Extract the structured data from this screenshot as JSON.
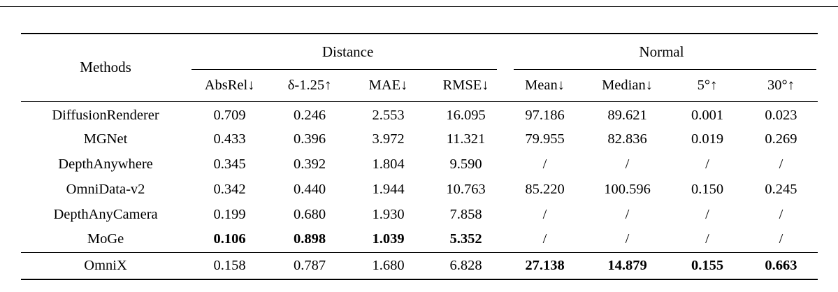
{
  "table": {
    "methods_header": "Methods",
    "col_groups": [
      {
        "label": "Distance",
        "span": 4
      },
      {
        "label": "Normal",
        "span": 4
      }
    ],
    "sub_headers": [
      "AbsRel↓",
      "δ-1.25↑",
      "MAE↓",
      "RMSE↓",
      "Mean↓",
      "Median↓",
      "5°↑",
      "30°↑"
    ],
    "rows": [
      {
        "method": "DiffusionRenderer",
        "values": [
          "0.709",
          "0.246",
          "2.553",
          "16.095",
          "97.186",
          "89.621",
          "0.001",
          "0.023"
        ],
        "bold": []
      },
      {
        "method": "MGNet",
        "values": [
          "0.433",
          "0.396",
          "3.972",
          "11.321",
          "79.955",
          "82.836",
          "0.019",
          "0.269"
        ],
        "bold": []
      },
      {
        "method": "DepthAnywhere",
        "values": [
          "0.345",
          "0.392",
          "1.804",
          "9.590",
          "/",
          "/",
          "/",
          "/"
        ],
        "bold": []
      },
      {
        "method": "OmniData-v2",
        "values": [
          "0.342",
          "0.440",
          "1.944",
          "10.763",
          "85.220",
          "100.596",
          "0.150",
          "0.245"
        ],
        "bold": []
      },
      {
        "method": "DepthAnyCamera",
        "values": [
          "0.199",
          "0.680",
          "1.930",
          "7.858",
          "/",
          "/",
          "/",
          "/"
        ],
        "bold": []
      },
      {
        "method": "MoGe",
        "values": [
          "0.106",
          "0.898",
          "1.039",
          "5.352",
          "/",
          "/",
          "/",
          "/"
        ],
        "bold": [
          0,
          1,
          2,
          3
        ]
      }
    ],
    "final_row": {
      "method": "OmniX",
      "values": [
        "0.158",
        "0.787",
        "1.680",
        "6.828",
        "27.138",
        "14.879",
        "0.155",
        "0.663"
      ],
      "bold": [
        4,
        5,
        6,
        7
      ]
    },
    "colors": {
      "rule": "#000000",
      "background": "#ffffff"
    }
  }
}
